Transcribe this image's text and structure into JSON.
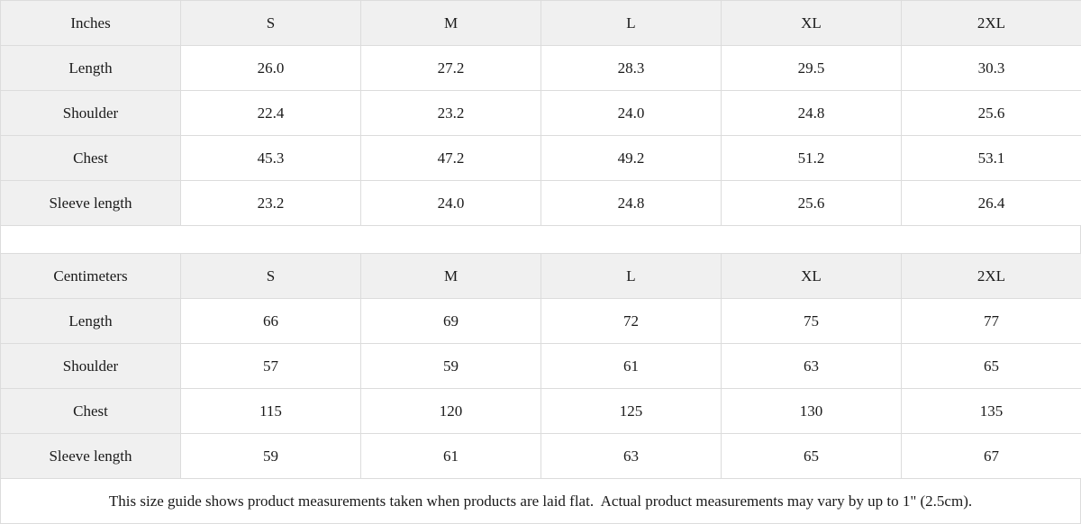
{
  "colors": {
    "header_bg": "#f0f0f0",
    "label_bg": "#f0f0f0",
    "border": "#dcdcdc",
    "text": "#1a1a1a",
    "cell_bg": "#ffffff"
  },
  "tables": [
    {
      "unit": "Inches",
      "sizes": [
        "S",
        "M",
        "L",
        "XL",
        "2XL"
      ],
      "rows": [
        {
          "label": "Length",
          "values": [
            "26.0",
            "27.2",
            "28.3",
            "29.5",
            "30.3"
          ]
        },
        {
          "label": "Shoulder",
          "values": [
            "22.4",
            "23.2",
            "24.0",
            "24.8",
            "25.6"
          ]
        },
        {
          "label": "Chest",
          "values": [
            "45.3",
            "47.2",
            "49.2",
            "51.2",
            "53.1"
          ]
        },
        {
          "label": "Sleeve length",
          "values": [
            "23.2",
            "24.0",
            "24.8",
            "25.6",
            "26.4"
          ]
        }
      ]
    },
    {
      "unit": "Centimeters",
      "sizes": [
        "S",
        "M",
        "L",
        "XL",
        "2XL"
      ],
      "rows": [
        {
          "label": "Length",
          "values": [
            "66",
            "69",
            "72",
            "75",
            "77"
          ]
        },
        {
          "label": "Shoulder",
          "values": [
            "57",
            "59",
            "61",
            "63",
            "65"
          ]
        },
        {
          "label": "Chest",
          "values": [
            "115",
            "120",
            "125",
            "130",
            "135"
          ]
        },
        {
          "label": "Sleeve length",
          "values": [
            "59",
            "61",
            "63",
            "65",
            "67"
          ]
        }
      ]
    }
  ],
  "footer": {
    "note": "This size guide shows product measurements taken when products are laid flat.  Actual product measurements may vary by up to 1\" (2.5cm)."
  }
}
